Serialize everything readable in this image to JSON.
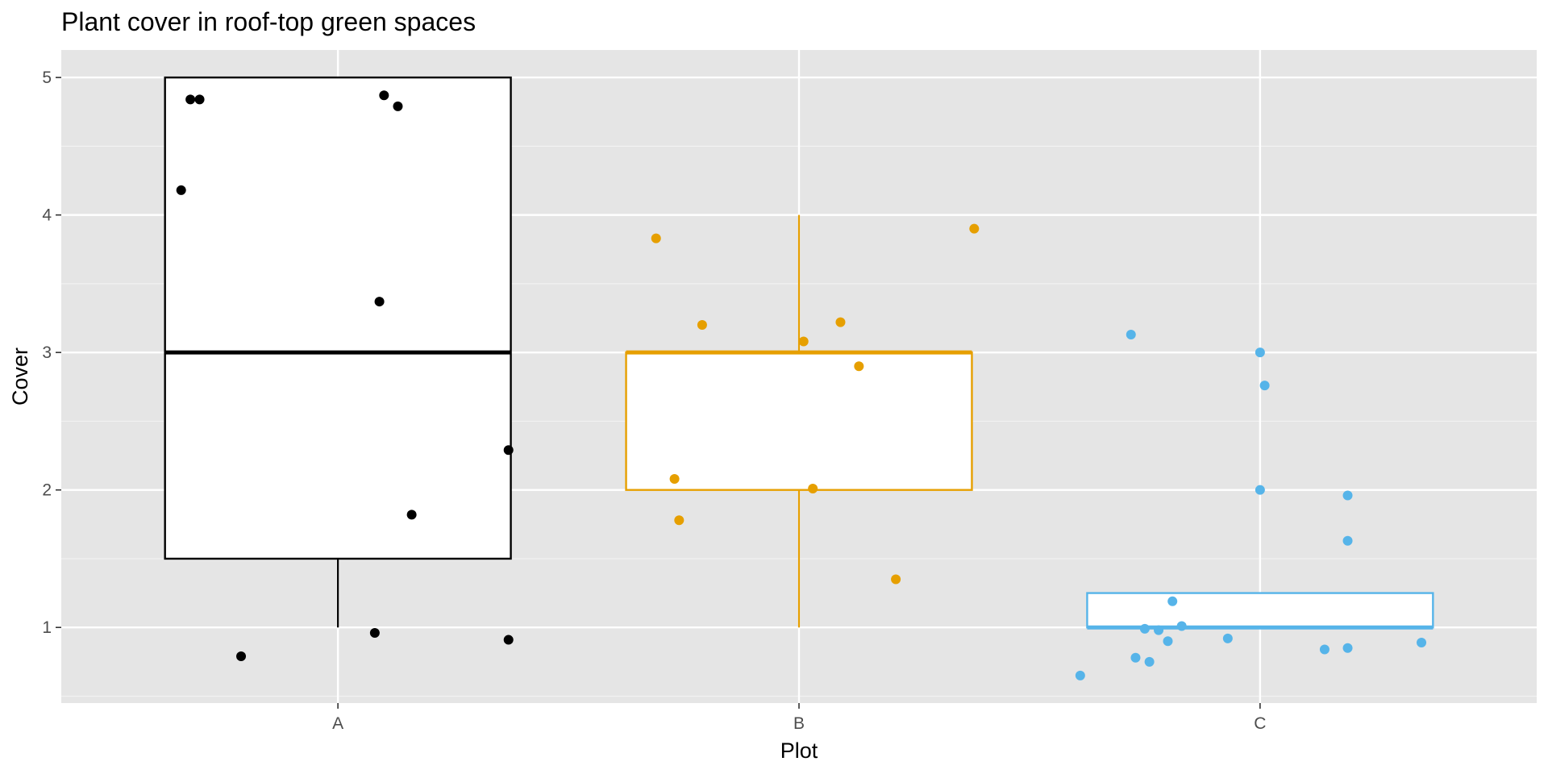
{
  "chart_data": {
    "type": "box",
    "title": "Plant cover in roof-top green spaces",
    "xlabel": "Plot",
    "ylabel": "Cover",
    "ylim": [
      0.45,
      5.2
    ],
    "yticks": [
      1,
      2,
      3,
      4,
      5
    ],
    "categories": [
      "A",
      "B",
      "C"
    ],
    "grid": true,
    "legend": "none",
    "colors": {
      "A": "#000000",
      "B": "#E69F00",
      "C": "#56B4E9"
    },
    "boxes": [
      {
        "category": "A",
        "whisker_low": 1.0,
        "q1": 1.5,
        "median": 3.0,
        "q3": 5.0,
        "whisker_high": 5.0
      },
      {
        "category": "B",
        "whisker_low": 1.0,
        "q1": 2.0,
        "median": 3.0,
        "q3": 3.0,
        "whisker_high": 4.0
      },
      {
        "category": "C",
        "whisker_low": 1.0,
        "q1": 1.0,
        "median": 1.0,
        "q3": 1.25,
        "whisker_high": 1.25
      }
    ],
    "points": [
      {
        "category": "A",
        "values": [
          4.84,
          4.84,
          4.18,
          4.87,
          4.79,
          3.37,
          0.79,
          0.96,
          2.29,
          1.82,
          0.91
        ]
      },
      {
        "category": "B",
        "values": [
          3.83,
          3.2,
          2.08,
          1.78,
          3.08,
          3.22,
          2.9,
          2.01,
          1.35,
          3.9
        ]
      },
      {
        "category": "C",
        "values": [
          3.13,
          3.0,
          2.76,
          2.0,
          1.96,
          1.63,
          1.19,
          0.99,
          0.98,
          1.01,
          0.9,
          0.92,
          0.78,
          0.75,
          0.65,
          0.84,
          0.85,
          0.89
        ]
      }
    ]
  }
}
